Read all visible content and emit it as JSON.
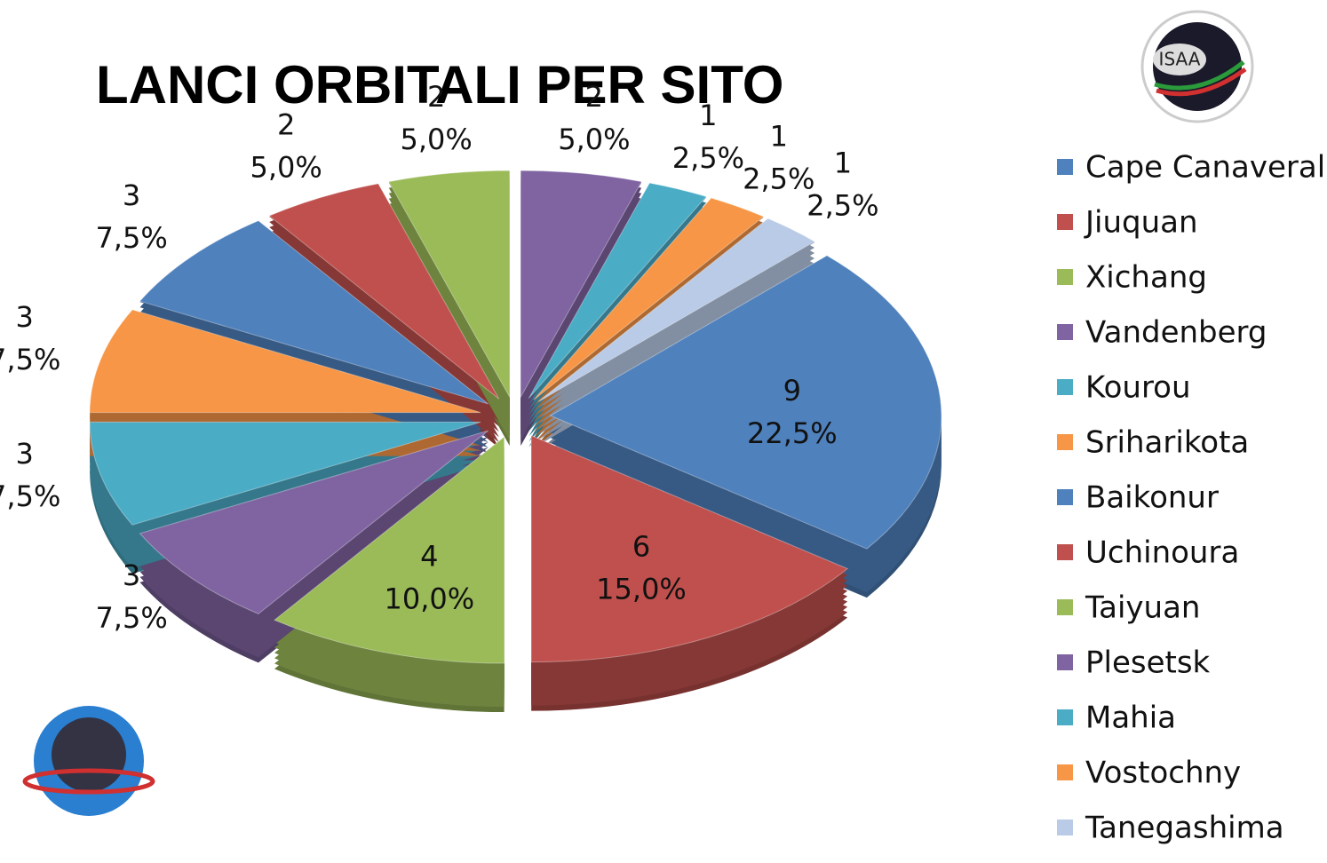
{
  "chart_data": {
    "type": "pie",
    "title": "LANCI ORBITALI PER SITO",
    "categories": [
      "Cape Canaveral",
      "Jiuquan",
      "Xichang",
      "Vandenberg",
      "Kourou",
      "Sriharikota",
      "Baikonur",
      "Uchinoura",
      "Taiyuan",
      "Plesetsk",
      "Mahia",
      "Vostochny",
      "Tanegashima"
    ],
    "values": [
      9,
      6,
      4,
      3,
      3,
      3,
      3,
      2,
      2,
      2,
      1,
      1,
      1
    ],
    "percent_labels": [
      "22,5%",
      "15,0%",
      "10,0%",
      "7,5%",
      "7,5%",
      "7,5%",
      "7,5%",
      "5,0%",
      "5,0%",
      "5,0%",
      "2,5%",
      "2,5%",
      "2,5%"
    ],
    "colors": [
      "#4f81bd",
      "#c0504d",
      "#9bbb59",
      "#8064a2",
      "#4bacc6",
      "#f79646",
      "#4f81bd",
      "#c0504d",
      "#9bbb59",
      "#8064a2",
      "#4bacc6",
      "#f79646",
      "#b9cbe6"
    ],
    "legend": "right"
  },
  "logos": {
    "top_right": "ISAA"
  }
}
